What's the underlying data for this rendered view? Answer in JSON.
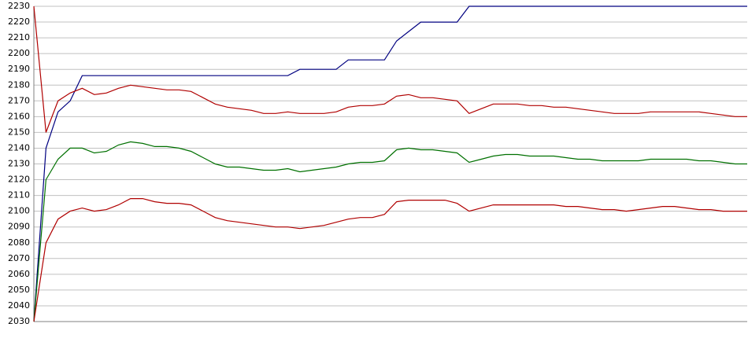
{
  "chart_data": {
    "type": "line",
    "categories": [
      null,
      null,
      null,
      null,
      null,
      null,
      null,
      null,
      null,
      null,
      null,
      null,
      null,
      null,
      null,
      null,
      null,
      null,
      null,
      null,
      null,
      null,
      null,
      null,
      null,
      null,
      null,
      null,
      null,
      null,
      null,
      null,
      null,
      null,
      null,
      null,
      null,
      null,
      null,
      null,
      null,
      null,
      null,
      null,
      null,
      null,
      null,
      null,
      null,
      null,
      null,
      null,
      null,
      null,
      null,
      null,
      null,
      null,
      null,
      null
    ],
    "series": [
      {
        "color": "#000080",
        "values": [
          2030,
          2140,
          2163,
          2170,
          2186,
          2186,
          2186,
          2186,
          2186,
          2186,
          2186,
          2186,
          2186,
          2186,
          2186,
          2186,
          2186,
          2186,
          2186,
          2186,
          2186,
          2186,
          2190,
          2190,
          2190,
          2190,
          2196,
          2196,
          2196,
          2196,
          2208,
          2214,
          2220,
          2220,
          2220,
          2220,
          2230,
          2230,
          2230,
          2230,
          2230,
          2230,
          2230,
          2230,
          2230,
          2230,
          2230,
          2230,
          2230,
          2230,
          2230,
          2230,
          2230,
          2230,
          2230,
          2230,
          2230,
          2230,
          2230,
          2230
        ]
      },
      {
        "color": "#b00000",
        "values": [
          2230,
          2150,
          2170,
          2175,
          2178,
          2174,
          2175,
          2178,
          2180,
          2179,
          2178,
          2177,
          2177,
          2176,
          2172,
          2168,
          2166,
          2165,
          2164,
          2162,
          2162,
          2163,
          2162,
          2162,
          2162,
          2163,
          2166,
          2167,
          2167,
          2168,
          2173,
          2174,
          2172,
          2172,
          2171,
          2170,
          2162,
          2165,
          2168,
          2168,
          2168,
          2167,
          2167,
          2166,
          2166,
          2165,
          2164,
          2163,
          2162,
          2162,
          2162,
          2163,
          2163,
          2163,
          2163,
          2163,
          2162,
          2161,
          2160,
          2160
        ]
      },
      {
        "color": "#007000",
        "values": [
          2030,
          2120,
          2133,
          2140,
          2140,
          2137,
          2138,
          2142,
          2144,
          2143,
          2141,
          2141,
          2140,
          2138,
          2134,
          2130,
          2128,
          2128,
          2127,
          2126,
          2126,
          2127,
          2125,
          2126,
          2127,
          2128,
          2130,
          2131,
          2131,
          2132,
          2139,
          2140,
          2139,
          2139,
          2138,
          2137,
          2131,
          2133,
          2135,
          2136,
          2136,
          2135,
          2135,
          2135,
          2134,
          2133,
          2133,
          2132,
          2132,
          2132,
          2132,
          2133,
          2133,
          2133,
          2133,
          2132,
          2132,
          2131,
          2130,
          2130
        ]
      },
      {
        "color": "#b00000",
        "values": [
          2030,
          2080,
          2095,
          2100,
          2102,
          2100,
          2101,
          2104,
          2108,
          2108,
          2106,
          2105,
          2105,
          2104,
          2100,
          2096,
          2094,
          2093,
          2092,
          2091,
          2090,
          2090,
          2089,
          2090,
          2091,
          2093,
          2095,
          2096,
          2096,
          2098,
          2106,
          2107,
          2107,
          2107,
          2107,
          2105,
          2100,
          2102,
          2104,
          2104,
          2104,
          2104,
          2104,
          2104,
          2103,
          2103,
          2102,
          2101,
          2101,
          2100,
          2101,
          2102,
          2103,
          2103,
          2102,
          2101,
          2101,
          2100,
          2100,
          2100
        ]
      }
    ],
    "ylim": [
      2030,
      2230
    ],
    "yticks": [
      2030,
      2040,
      2050,
      2060,
      2070,
      2080,
      2090,
      2100,
      2110,
      2120,
      2130,
      2140,
      2150,
      2160,
      2170,
      2180,
      2190,
      2200,
      2210,
      2220,
      2230
    ],
    "grid": true
  }
}
